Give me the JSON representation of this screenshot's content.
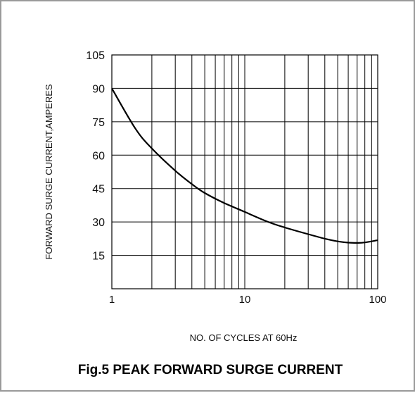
{
  "chart_data": {
    "type": "line",
    "title": "Fig.5 PEAK FORWARD SURGE CURRENT",
    "xlabel": "NO. OF CYCLES AT 60Hz",
    "ylabel": "FORWARD SURGE CURRENT,AMPERES",
    "x_scale": "log",
    "xlim": [
      1,
      100
    ],
    "ylim": [
      0,
      105
    ],
    "x_ticks": [
      1,
      10,
      100
    ],
    "x_tick_labels": [
      "1",
      "10",
      "100"
    ],
    "y_ticks": [
      15,
      30,
      45,
      60,
      75,
      90,
      105
    ],
    "y_tick_labels": [
      "15",
      "30",
      "45",
      "60",
      "75",
      "90",
      "105"
    ],
    "grid": true,
    "legend": "none",
    "line_color": "#000000",
    "series": [
      {
        "x": [
          1,
          1.5,
          2,
          3,
          4,
          5,
          7,
          10,
          15,
          20,
          30,
          40,
          50,
          60,
          70,
          80,
          100
        ],
        "y": [
          90,
          72,
          63,
          53,
          47,
          43,
          38.5,
          34.5,
          30,
          27.5,
          24.5,
          22.5,
          21.3,
          20.7,
          20.6,
          20.8,
          21.8
        ]
      }
    ]
  }
}
